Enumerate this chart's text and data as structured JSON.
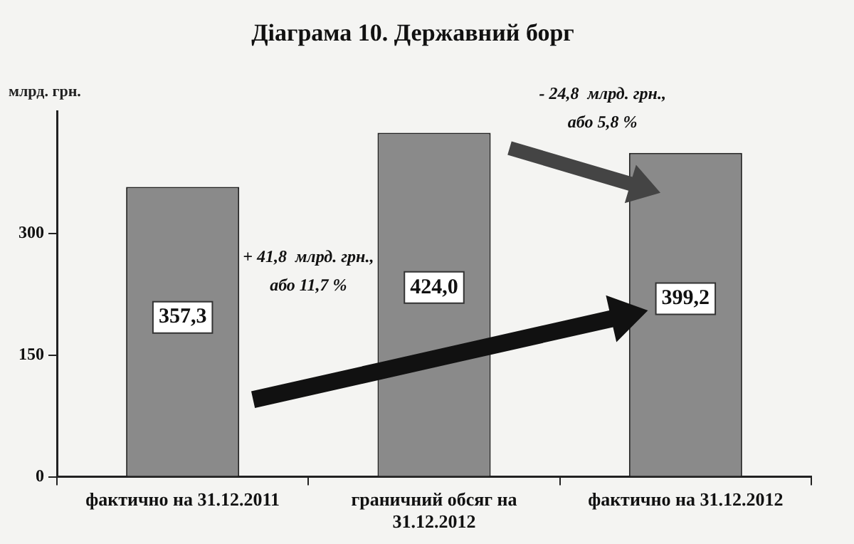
{
  "chart_data": {
    "type": "bar",
    "title": "Діаграма 10. Державний борг",
    "ylabel": "млрд. грн.",
    "categories": [
      "фактично на 31.12.2011",
      "граничний обсяг на\n31.12.2012",
      "фактично на 31.12.2012"
    ],
    "values": [
      357.3,
      424.0,
      399.2
    ],
    "value_labels": [
      "357,3",
      "424,0",
      "399,2"
    ],
    "color": "#8a8a8a",
    "ylim": [
      0,
      450
    ],
    "yticks": [
      0,
      150,
      300
    ],
    "grid": false,
    "legend": false,
    "annotations": [
      "+ 41,8  млрд. грн.,\nабо 11,7 %",
      "- 24,8  млрд. грн.,\nабо 5,8 %"
    ]
  }
}
